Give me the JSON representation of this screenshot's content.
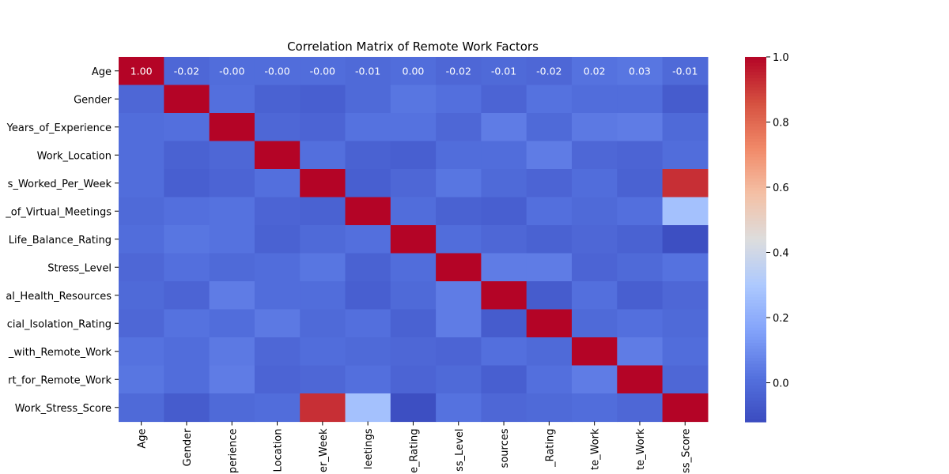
{
  "chart_data": {
    "type": "heatmap",
    "title": "Correlation Matrix of Remote Work Factors",
    "xlabel": "",
    "ylabel": "",
    "row_labels": [
      "Age",
      "Gender",
      "Years_of_Experience",
      "Work_Location",
      "s_Worked_Per_Week",
      "_of_Virtual_Meetings",
      "Life_Balance_Rating",
      "Stress_Level",
      "al_Health_Resources",
      "cial_Isolation_Rating",
      "_with_Remote_Work",
      "rt_for_Remote_Work",
      "Work_Stress_Score"
    ],
    "col_labels": [
      "Age",
      "Gender",
      "perience",
      "Location",
      "er_Week",
      "leetings",
      "e_Rating",
      "ss_Level",
      "sources",
      "_Rating",
      "te_Work",
      "te_Work",
      "ss_Score"
    ],
    "annotated_row_labels": [
      "1.00",
      "-0.02",
      "-0.00",
      "-0.00",
      "-0.00",
      "-0.01",
      "0.00",
      "-0.02",
      "-0.01",
      "-0.02",
      "0.02",
      "0.03",
      "-0.01"
    ],
    "matrix": [
      [
        1.0,
        -0.02,
        -0.0,
        -0.0,
        -0.0,
        -0.01,
        0.0,
        -0.02,
        -0.01,
        -0.02,
        0.02,
        0.03,
        -0.01
      ],
      [
        -0.02,
        1.0,
        0.01,
        -0.04,
        -0.05,
        -0.01,
        0.03,
        0.01,
        -0.03,
        0.02,
        0.0,
        0.0,
        -0.06
      ],
      [
        -0.0,
        0.01,
        1.0,
        -0.02,
        -0.03,
        0.02,
        0.02,
        -0.02,
        0.05,
        -0.01,
        0.04,
        0.05,
        -0.01
      ],
      [
        -0.0,
        -0.04,
        -0.02,
        1.0,
        0.01,
        -0.04,
        -0.05,
        -0.0,
        -0.0,
        0.05,
        -0.02,
        -0.03,
        -0.0
      ],
      [
        -0.0,
        -0.05,
        -0.03,
        0.01,
        1.0,
        -0.05,
        -0.02,
        0.03,
        -0.01,
        -0.03,
        0.0,
        -0.04,
        0.92
      ],
      [
        -0.01,
        0.01,
        0.02,
        -0.03,
        -0.04,
        1.0,
        -0.0,
        -0.04,
        -0.05,
        0.01,
        -0.01,
        0.01,
        0.27
      ],
      [
        0.0,
        0.03,
        0.02,
        -0.04,
        -0.01,
        0.01,
        1.0,
        -0.0,
        -0.02,
        -0.04,
        -0.02,
        -0.04,
        -0.11
      ],
      [
        -0.02,
        0.01,
        -0.01,
        0.0,
        0.03,
        -0.04,
        0.0,
        1.0,
        0.05,
        0.05,
        -0.03,
        -0.01,
        0.02
      ],
      [
        -0.01,
        -0.03,
        0.05,
        0.0,
        -0.0,
        -0.05,
        -0.01,
        0.05,
        1.0,
        -0.06,
        0.01,
        -0.05,
        -0.02
      ],
      [
        -0.02,
        0.02,
        0.0,
        0.04,
        -0.01,
        0.01,
        -0.04,
        0.05,
        -0.06,
        1.0,
        -0.01,
        0.01,
        -0.01
      ],
      [
        0.02,
        0.0,
        0.04,
        -0.02,
        0.0,
        -0.01,
        -0.02,
        -0.03,
        0.01,
        -0.01,
        1.0,
        0.05,
        -0.0
      ],
      [
        0.03,
        0.0,
        0.05,
        -0.03,
        -0.02,
        0.01,
        -0.03,
        -0.01,
        -0.05,
        0.01,
        0.05,
        1.0,
        -0.02
      ],
      [
        -0.01,
        -0.06,
        -0.01,
        -0.0,
        0.92,
        0.27,
        -0.11,
        0.02,
        -0.02,
        -0.01,
        -0.0,
        -0.02,
        1.0
      ]
    ],
    "colormap": "coolwarm",
    "colorbar": {
      "min": -0.12,
      "max": 1.0,
      "ticks": [
        0.0,
        0.2,
        0.4,
        0.6,
        0.8,
        1.0
      ],
      "tick_labels": [
        "0.0",
        "0.2",
        "0.4",
        "0.6",
        "0.8",
        "1.0"
      ]
    },
    "annotations": "first row only",
    "legend": "colorbar right"
  }
}
